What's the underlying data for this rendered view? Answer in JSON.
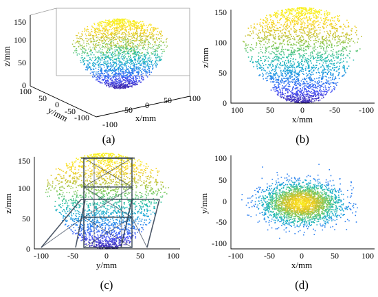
{
  "chart_data": [
    {
      "type": "scatter",
      "panel_label": "(a)",
      "view": "3d-isometric",
      "xlabel": "x/mm",
      "ylabel": "y/mm",
      "zlabel": "z/mm",
      "xlim": [
        -100,
        100
      ],
      "ylim": [
        -100,
        100
      ],
      "zlim": [
        0,
        150
      ],
      "x_ticks": [
        "-100",
        "-50",
        "0",
        "50",
        "100"
      ],
      "y_ticks": [
        "100",
        "50",
        "0",
        "-50",
        "-100"
      ],
      "z_ticks": [
        "0",
        "50",
        "100",
        "150"
      ],
      "colormap": "parula (colored by z)",
      "shape": "ellipsoidal point cloud, wide at top, narrowing to a point at z≈0",
      "grid": false
    },
    {
      "type": "scatter",
      "panel_label": "(b)",
      "view": "x-z projection",
      "xlabel": "x/mm",
      "ylabel": "z/mm",
      "xlim": [
        100,
        -100
      ],
      "ylim": [
        0,
        150
      ],
      "x_ticks": [
        "100",
        "50",
        "0",
        "-50",
        "-100"
      ],
      "y_ticks": [
        "0",
        "50",
        "100",
        "150"
      ],
      "colormap": "parula (colored by z)",
      "grid": false
    },
    {
      "type": "scatter",
      "panel_label": "(c)",
      "view": "y-z projection with tower overlay",
      "xlabel": "y/mm",
      "ylabel": "z/mm",
      "xlim": [
        -100,
        100
      ],
      "ylim": [
        0,
        150
      ],
      "x_ticks": [
        "-100",
        "-50",
        "0",
        "50",
        "100"
      ],
      "y_ticks": [
        "0",
        "50",
        "100",
        "150"
      ],
      "colormap": "parula (colored by z)",
      "grid": false
    },
    {
      "type": "scatter",
      "panel_label": "(d)",
      "view": "x-y projection (top view)",
      "xlabel": "x/mm",
      "ylabel": "y/mm",
      "xlim": [
        -100,
        100
      ],
      "ylim": [
        -100,
        100
      ],
      "x_ticks": [
        "-100",
        "-50",
        "0",
        "50",
        "100"
      ],
      "y_ticks": [
        "-100",
        "-50",
        "0",
        "50",
        "100"
      ],
      "colormap": "parula (density, yellow center)",
      "grid": false
    }
  ],
  "colors": {
    "parula": [
      "#3e26a8",
      "#4a53f5",
      "#2b7ff0",
      "#17a7d6",
      "#2dc0a6",
      "#7fca5d",
      "#c9c130",
      "#f8d323",
      "#f9f024"
    ]
  }
}
